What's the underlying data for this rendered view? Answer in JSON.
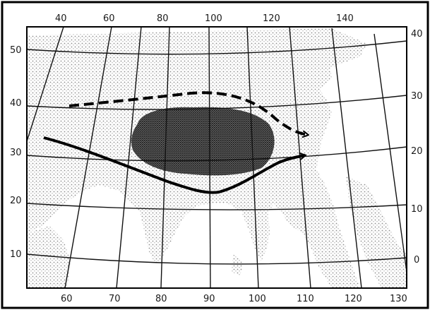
{
  "map": {
    "top_labels": [
      "40",
      "60",
      "80",
      "100",
      "120",
      "140"
    ],
    "bottom_labels": [
      "60",
      "70",
      "80",
      "90",
      "100",
      "110",
      "120",
      "130"
    ],
    "left_labels": [
      "50",
      "40",
      "30",
      "20",
      "10"
    ],
    "right_labels": [
      "40",
      "30",
      "20",
      "10",
      "0"
    ],
    "colors": {
      "land_stipple": "#9a9a9a",
      "plateau": "#3d3d3d",
      "grid": "#111111",
      "arrow": "#000000",
      "frame": "#000000"
    },
    "features": {
      "solid_arrow": "jet-stream-solid-arrow",
      "dashed_arrow": "jet-stream-dashed-arrow",
      "plateau_region": "dense-stipple-region"
    }
  }
}
